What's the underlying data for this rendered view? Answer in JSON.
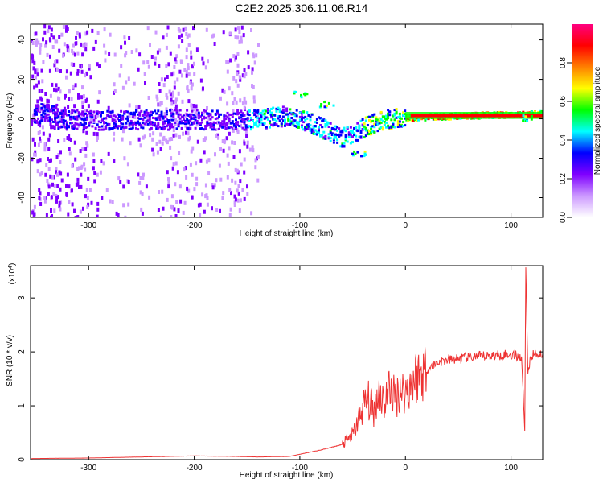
{
  "title": "C2E2.2025.306.11.06.R14",
  "chart_data": [
    {
      "type": "heatmap",
      "xlabel": "Height of straight line (km)",
      "ylabel": "Frequency (Hz)",
      "xlim": [
        -355,
        130
      ],
      "ylim": [
        -50,
        48
      ],
      "x_ticks": [
        -300,
        -200,
        -100,
        0,
        100
      ],
      "y_ticks": [
        -40,
        -20,
        0,
        20,
        40
      ],
      "colorbar": {
        "label": "Normalized spectral amplitude",
        "range": [
          0,
          1
        ],
        "ticks": [
          "0.0",
          "0.2",
          "0.4",
          "0.6",
          "0.8"
        ],
        "colors": [
          "#ffffff",
          "#cc99ff",
          "#7f00ff",
          "#0000ff",
          "#00ffff",
          "#00ff00",
          "#ffff00",
          "#ff8000",
          "#ff0000",
          "#ff0080"
        ]
      },
      "ridge": [
        {
          "x": -330,
          "f": 0
        },
        {
          "x": -250,
          "f": 0
        },
        {
          "x": -150,
          "f": 0
        },
        {
          "x": -110,
          "f": 2
        },
        {
          "x": -80,
          "f": -4
        },
        {
          "x": -60,
          "f": -9
        },
        {
          "x": -45,
          "f": -5
        },
        {
          "x": -20,
          "f": 0
        },
        {
          "x": 0,
          "f": 1
        },
        {
          "x": 50,
          "f": 2
        },
        {
          "x": 130,
          "f": 3
        }
      ],
      "secondary_branches": [
        {
          "x": -100,
          "f": 13
        },
        {
          "x": -75,
          "f": 8
        },
        {
          "x": -45,
          "f": -17
        },
        {
          "x": 113,
          "f": 1
        }
      ]
    },
    {
      "type": "line",
      "xlabel": "Height of straight line (km)",
      "ylabel": "SNR (10 * v/v)",
      "y_scale_label": "(x10",
      "y_scale_exponent": "4",
      "xlim": [
        -355,
        130
      ],
      "ylim": [
        0,
        3.6
      ],
      "x_ticks": [
        -300,
        -200,
        -100,
        0,
        100
      ],
      "y_ticks": [
        0,
        1,
        2,
        3
      ],
      "series": [
        {
          "color": "#ee3333",
          "points": [
            [
              -355,
              0.02
            ],
            [
              -300,
              0.03
            ],
            [
              -250,
              0.05
            ],
            [
              -200,
              0.07
            ],
            [
              -160,
              0.06
            ],
            [
              -140,
              0.05
            ],
            [
              -110,
              0.06
            ],
            [
              -100,
              0.1
            ],
            [
              -80,
              0.18
            ],
            [
              -60,
              0.28
            ],
            [
              -50,
              0.45
            ],
            [
              -45,
              0.7
            ],
            [
              -40,
              1.0
            ],
            [
              -35,
              1.1
            ],
            [
              -30,
              0.9
            ],
            [
              -25,
              1.3
            ],
            [
              -20,
              1.05
            ],
            [
              -15,
              1.35
            ],
            [
              -10,
              1.15
            ],
            [
              -5,
              1.3
            ],
            [
              0,
              1.25
            ],
            [
              5,
              1.4
            ],
            [
              10,
              1.55
            ],
            [
              20,
              1.65
            ],
            [
              30,
              1.8
            ],
            [
              40,
              1.85
            ],
            [
              60,
              1.9
            ],
            [
              80,
              1.93
            ],
            [
              95,
              1.95
            ],
            [
              105,
              1.93
            ],
            [
              110,
              1.9
            ],
            [
              113,
              0.55
            ],
            [
              114,
              3.55
            ],
            [
              116,
              1.65
            ],
            [
              120,
              1.95
            ],
            [
              130,
              1.97
            ]
          ]
        }
      ]
    }
  ]
}
